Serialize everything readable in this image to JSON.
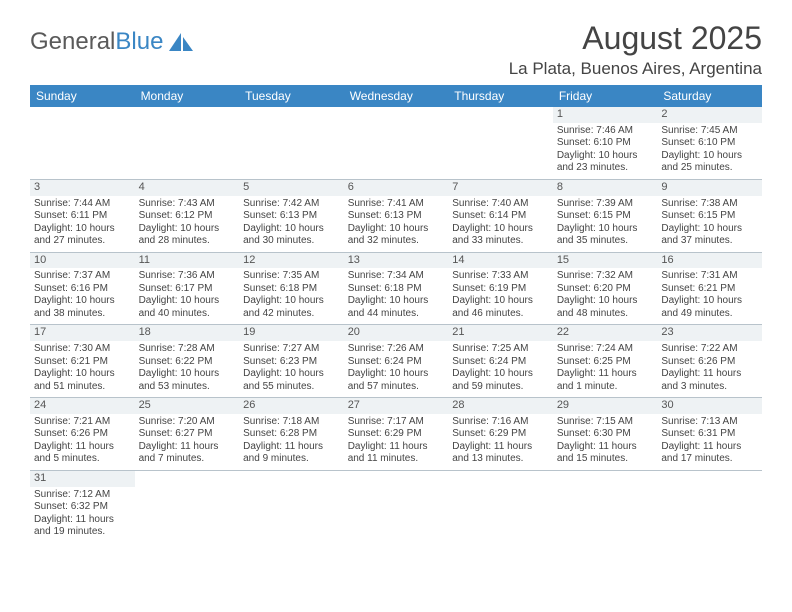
{
  "logo": {
    "text_main": "General",
    "text_accent": "Blue"
  },
  "header": {
    "month_title": "August 2025",
    "location": "La Plata, Buenos Aires, Argentina"
  },
  "colors": {
    "header_bg": "#3a86c4",
    "daynum_bg": "#eef2f4",
    "text": "#444444",
    "rule": "#b8c3cb"
  },
  "day_headers": [
    "Sunday",
    "Monday",
    "Tuesday",
    "Wednesday",
    "Thursday",
    "Friday",
    "Saturday"
  ],
  "weeks": [
    [
      null,
      null,
      null,
      null,
      null,
      {
        "n": "1",
        "sr": "Sunrise: 7:46 AM",
        "ss": "Sunset: 6:10 PM",
        "d1": "Daylight: 10 hours",
        "d2": "and 23 minutes."
      },
      {
        "n": "2",
        "sr": "Sunrise: 7:45 AM",
        "ss": "Sunset: 6:10 PM",
        "d1": "Daylight: 10 hours",
        "d2": "and 25 minutes."
      }
    ],
    [
      {
        "n": "3",
        "sr": "Sunrise: 7:44 AM",
        "ss": "Sunset: 6:11 PM",
        "d1": "Daylight: 10 hours",
        "d2": "and 27 minutes."
      },
      {
        "n": "4",
        "sr": "Sunrise: 7:43 AM",
        "ss": "Sunset: 6:12 PM",
        "d1": "Daylight: 10 hours",
        "d2": "and 28 minutes."
      },
      {
        "n": "5",
        "sr": "Sunrise: 7:42 AM",
        "ss": "Sunset: 6:13 PM",
        "d1": "Daylight: 10 hours",
        "d2": "and 30 minutes."
      },
      {
        "n": "6",
        "sr": "Sunrise: 7:41 AM",
        "ss": "Sunset: 6:13 PM",
        "d1": "Daylight: 10 hours",
        "d2": "and 32 minutes."
      },
      {
        "n": "7",
        "sr": "Sunrise: 7:40 AM",
        "ss": "Sunset: 6:14 PM",
        "d1": "Daylight: 10 hours",
        "d2": "and 33 minutes."
      },
      {
        "n": "8",
        "sr": "Sunrise: 7:39 AM",
        "ss": "Sunset: 6:15 PM",
        "d1": "Daylight: 10 hours",
        "d2": "and 35 minutes."
      },
      {
        "n": "9",
        "sr": "Sunrise: 7:38 AM",
        "ss": "Sunset: 6:15 PM",
        "d1": "Daylight: 10 hours",
        "d2": "and 37 minutes."
      }
    ],
    [
      {
        "n": "10",
        "sr": "Sunrise: 7:37 AM",
        "ss": "Sunset: 6:16 PM",
        "d1": "Daylight: 10 hours",
        "d2": "and 38 minutes."
      },
      {
        "n": "11",
        "sr": "Sunrise: 7:36 AM",
        "ss": "Sunset: 6:17 PM",
        "d1": "Daylight: 10 hours",
        "d2": "and 40 minutes."
      },
      {
        "n": "12",
        "sr": "Sunrise: 7:35 AM",
        "ss": "Sunset: 6:18 PM",
        "d1": "Daylight: 10 hours",
        "d2": "and 42 minutes."
      },
      {
        "n": "13",
        "sr": "Sunrise: 7:34 AM",
        "ss": "Sunset: 6:18 PM",
        "d1": "Daylight: 10 hours",
        "d2": "and 44 minutes."
      },
      {
        "n": "14",
        "sr": "Sunrise: 7:33 AM",
        "ss": "Sunset: 6:19 PM",
        "d1": "Daylight: 10 hours",
        "d2": "and 46 minutes."
      },
      {
        "n": "15",
        "sr": "Sunrise: 7:32 AM",
        "ss": "Sunset: 6:20 PM",
        "d1": "Daylight: 10 hours",
        "d2": "and 48 minutes."
      },
      {
        "n": "16",
        "sr": "Sunrise: 7:31 AM",
        "ss": "Sunset: 6:21 PM",
        "d1": "Daylight: 10 hours",
        "d2": "and 49 minutes."
      }
    ],
    [
      {
        "n": "17",
        "sr": "Sunrise: 7:30 AM",
        "ss": "Sunset: 6:21 PM",
        "d1": "Daylight: 10 hours",
        "d2": "and 51 minutes."
      },
      {
        "n": "18",
        "sr": "Sunrise: 7:28 AM",
        "ss": "Sunset: 6:22 PM",
        "d1": "Daylight: 10 hours",
        "d2": "and 53 minutes."
      },
      {
        "n": "19",
        "sr": "Sunrise: 7:27 AM",
        "ss": "Sunset: 6:23 PM",
        "d1": "Daylight: 10 hours",
        "d2": "and 55 minutes."
      },
      {
        "n": "20",
        "sr": "Sunrise: 7:26 AM",
        "ss": "Sunset: 6:24 PM",
        "d1": "Daylight: 10 hours",
        "d2": "and 57 minutes."
      },
      {
        "n": "21",
        "sr": "Sunrise: 7:25 AM",
        "ss": "Sunset: 6:24 PM",
        "d1": "Daylight: 10 hours",
        "d2": "and 59 minutes."
      },
      {
        "n": "22",
        "sr": "Sunrise: 7:24 AM",
        "ss": "Sunset: 6:25 PM",
        "d1": "Daylight: 11 hours",
        "d2": "and 1 minute."
      },
      {
        "n": "23",
        "sr": "Sunrise: 7:22 AM",
        "ss": "Sunset: 6:26 PM",
        "d1": "Daylight: 11 hours",
        "d2": "and 3 minutes."
      }
    ],
    [
      {
        "n": "24",
        "sr": "Sunrise: 7:21 AM",
        "ss": "Sunset: 6:26 PM",
        "d1": "Daylight: 11 hours",
        "d2": "and 5 minutes."
      },
      {
        "n": "25",
        "sr": "Sunrise: 7:20 AM",
        "ss": "Sunset: 6:27 PM",
        "d1": "Daylight: 11 hours",
        "d2": "and 7 minutes."
      },
      {
        "n": "26",
        "sr": "Sunrise: 7:18 AM",
        "ss": "Sunset: 6:28 PM",
        "d1": "Daylight: 11 hours",
        "d2": "and 9 minutes."
      },
      {
        "n": "27",
        "sr": "Sunrise: 7:17 AM",
        "ss": "Sunset: 6:29 PM",
        "d1": "Daylight: 11 hours",
        "d2": "and 11 minutes."
      },
      {
        "n": "28",
        "sr": "Sunrise: 7:16 AM",
        "ss": "Sunset: 6:29 PM",
        "d1": "Daylight: 11 hours",
        "d2": "and 13 minutes."
      },
      {
        "n": "29",
        "sr": "Sunrise: 7:15 AM",
        "ss": "Sunset: 6:30 PM",
        "d1": "Daylight: 11 hours",
        "d2": "and 15 minutes."
      },
      {
        "n": "30",
        "sr": "Sunrise: 7:13 AM",
        "ss": "Sunset: 6:31 PM",
        "d1": "Daylight: 11 hours",
        "d2": "and 17 minutes."
      }
    ],
    [
      {
        "n": "31",
        "sr": "Sunrise: 7:12 AM",
        "ss": "Sunset: 6:32 PM",
        "d1": "Daylight: 11 hours",
        "d2": "and 19 minutes."
      },
      null,
      null,
      null,
      null,
      null,
      null
    ]
  ]
}
